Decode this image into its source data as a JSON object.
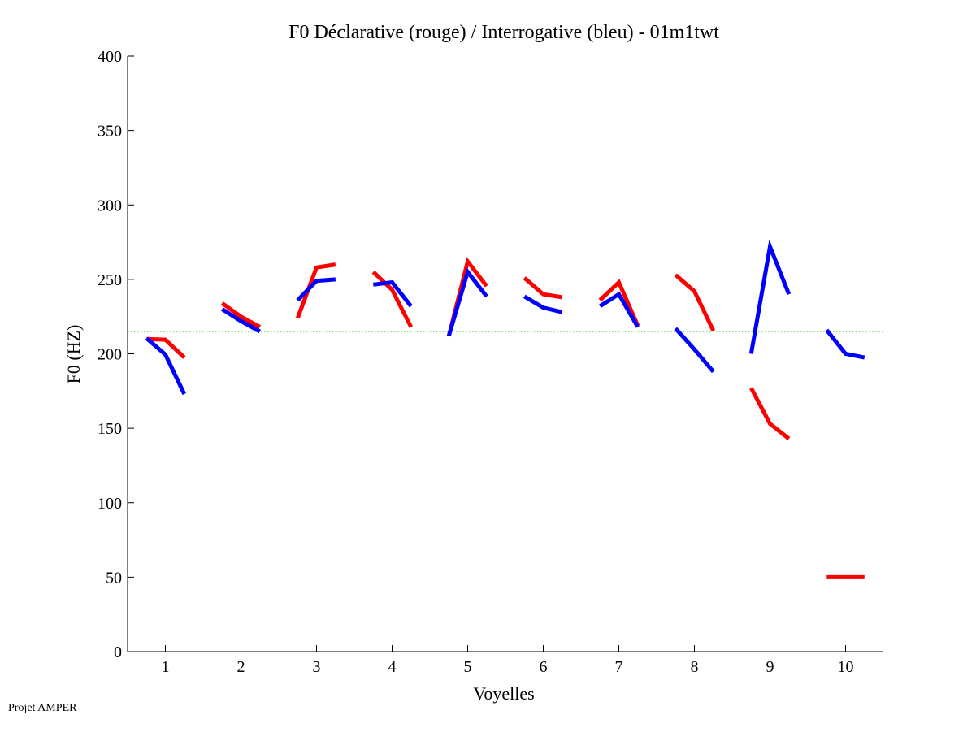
{
  "chart_data": {
    "type": "line",
    "title": "F0 Déclarative (rouge) / Interrogative (bleu) - 01m1twt",
    "xlabel": "Voyelles",
    "ylabel": "F0 (HZ)",
    "xlim": [
      0.5,
      10.5
    ],
    "ylim": [
      0,
      400
    ],
    "xticks": [
      1,
      2,
      3,
      4,
      5,
      6,
      7,
      8,
      9,
      10
    ],
    "yticks": [
      0,
      50,
      100,
      150,
      200,
      250,
      300,
      350,
      400
    ],
    "grid": false,
    "reference_line": {
      "value": 215,
      "color": "#00c800",
      "style": "dotted"
    },
    "series": [
      {
        "name": "Déclarative (rouge)",
        "color": "#ff0000",
        "segments": [
          [
            210,
            209.5,
            197.5
          ],
          [
            234,
            225,
            218
          ],
          [
            224,
            258,
            260
          ],
          [
            255,
            243,
            218
          ],
          [
            212,
            262,
            245.5
          ],
          [
            251,
            240,
            238
          ],
          [
            236,
            248,
            219
          ],
          [
            253,
            242,
            215.5
          ],
          [
            177,
            153,
            143
          ],
          [
            50,
            50,
            50
          ]
        ]
      },
      {
        "name": "Interrogative (bleu)",
        "color": "#0000ff",
        "segments": [
          [
            210.5,
            199.5,
            173
          ],
          [
            230,
            222,
            215
          ],
          [
            236,
            249,
            250
          ],
          [
            246.5,
            248,
            232
          ],
          [
            212,
            255,
            238.5
          ],
          [
            238.5,
            231,
            228
          ],
          [
            232,
            240,
            218
          ],
          [
            217,
            203,
            188
          ],
          [
            200,
            272,
            240
          ],
          [
            216,
            200,
            197.5
          ]
        ]
      }
    ],
    "segment_offsets": [
      -0.25,
      0,
      0.25
    ]
  },
  "footer": {
    "credit": "Projet AMPER"
  }
}
